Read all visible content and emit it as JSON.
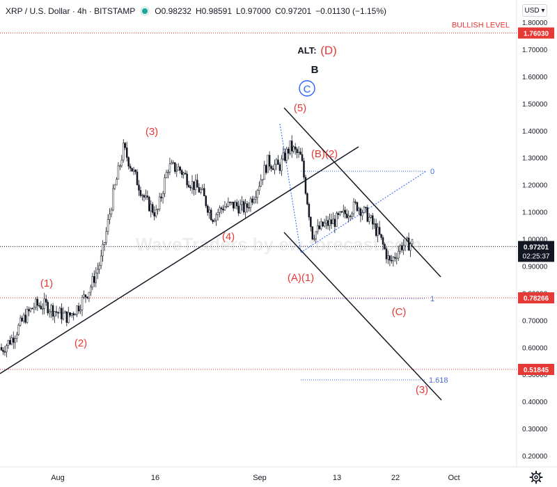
{
  "header": {
    "symbol": "XRP / U.S. Dollar · 4h · BITSTAMP",
    "open": "O0.98232",
    "high": "H0.98591",
    "low": "L0.97000",
    "close": "C0.97201",
    "change": "−0.01130 (−1.15%)"
  },
  "currency_button": "USD ▾",
  "watermark": "WaveTraders by ew-forecast.com",
  "chart_data": {
    "type": "candlestick",
    "y_axis": {
      "range": [
        0.2,
        1.8
      ],
      "ticks": [
        "1.80000",
        "1.70000",
        "1.60000",
        "1.50000",
        "1.40000",
        "1.30000",
        "1.20000",
        "1.10000",
        "1.00000",
        "0.90000",
        "0.80000",
        "0.70000",
        "0.60000",
        "0.50000",
        "0.40000",
        "0.30000",
        "0.20000"
      ]
    },
    "x_axis": {
      "ticks": [
        "Aug",
        "16",
        "Sep",
        "13",
        "22",
        "Oct"
      ]
    },
    "price_levels": [
      {
        "value": 1.7603,
        "label": "1.76030",
        "annotation": "BULLISH LEVEL",
        "color": "#e53935"
      },
      {
        "value": 0.78266,
        "label": "0.78266",
        "color": "#e53935"
      },
      {
        "value": 0.51845,
        "label": "0.51845",
        "color": "#e53935"
      }
    ],
    "current_price": {
      "value": 0.97201,
      "label": "0.97201",
      "countdown": "02:25:37"
    },
    "wave_labels": {
      "alt_prefix": "ALT:",
      "alt_D": "(D)",
      "B": "B",
      "C_circled": "C",
      "w5": "(5)",
      "w3": "(3)",
      "B2": "(B)(2)",
      "w1": "(1)",
      "w2": "(2)",
      "w4": "(4)",
      "A1": "(A)(1)",
      "C": "(C)",
      "w3_target": "(3)"
    },
    "fib_levels": {
      "zero": "0",
      "one": "1",
      "ext": "1.618"
    },
    "price_path": [
      [
        0.6,
        0.58
      ],
      [
        0.65,
        0.62
      ],
      [
        0.7,
        0.71
      ],
      [
        0.76,
        0.75
      ],
      [
        0.78,
        0.73
      ],
      [
        0.74,
        0.72
      ],
      [
        0.72,
        0.7
      ],
      [
        0.75,
        0.76
      ],
      [
        0.84,
        0.8
      ],
      [
        0.85,
        1.0
      ],
      [
        1.1,
        1.2
      ],
      [
        1.35,
        1.32
      ],
      [
        1.25,
        1.22
      ],
      [
        1.18,
        1.1
      ],
      [
        1.06,
        1.12
      ],
      [
        1.28,
        1.25
      ],
      [
        1.22,
        1.3
      ],
      [
        1.24,
        1.18
      ],
      [
        1.2,
        1.15
      ],
      [
        1.1,
        1.06
      ],
      [
        1.14,
        1.1
      ],
      [
        1.11,
        1.14
      ],
      [
        1.12,
        1.1
      ],
      [
        1.15,
        1.22
      ],
      [
        1.27,
        1.3
      ],
      [
        1.28,
        1.25
      ],
      [
        1.3,
        1.38
      ],
      [
        1.4,
        1.2
      ],
      [
        0.98,
        1.05
      ],
      [
        1.1,
        1.0
      ],
      [
        1.05,
        1.08
      ],
      [
        1.12,
        1.07
      ],
      [
        1.13,
        1.12
      ],
      [
        1.09,
        1.08
      ],
      [
        1.05,
        0.98
      ],
      [
        0.9,
        0.92
      ],
      [
        0.96,
        0.99
      ],
      [
        1.0,
        0.97
      ]
    ]
  }
}
